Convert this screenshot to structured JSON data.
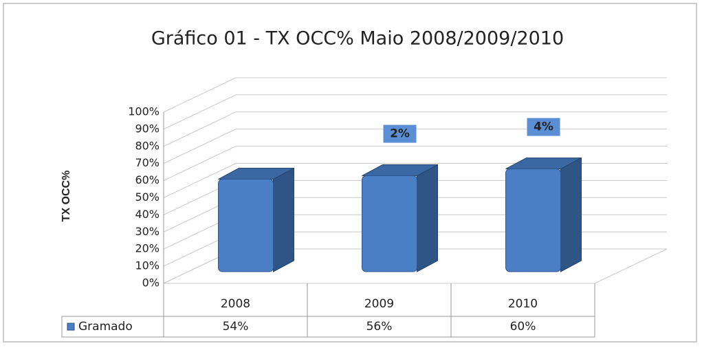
{
  "chart_data": {
    "type": "bar3d",
    "title": "Gráfico 01 - TX OCC%   Maio 2008/2009/2010",
    "ylabel": "TX OCC%",
    "categories": [
      "2008",
      "2009",
      "2010"
    ],
    "series": [
      {
        "name": "Gramado",
        "color": "#4a7fc6",
        "values": [
          54,
          56,
          60
        ],
        "value_labels": [
          "54%",
          "56%",
          "60%"
        ]
      }
    ],
    "ylim": [
      0,
      100
    ],
    "yticks": [
      {
        "value": 0,
        "label": "0%"
      },
      {
        "value": 10,
        "label": "10%"
      },
      {
        "value": 20,
        "label": "20%"
      },
      {
        "value": 30,
        "label": "30%"
      },
      {
        "value": 40,
        "label": "40%"
      },
      {
        "value": 50,
        "label": "50%"
      },
      {
        "value": 60,
        "label": "60%"
      },
      {
        "value": 70,
        "label": "70%"
      },
      {
        "value": 80,
        "label": "80%"
      },
      {
        "value": 90,
        "label": "90%"
      },
      {
        "value": 100,
        "label": "100%"
      }
    ],
    "grid": true,
    "annotations": [
      {
        "text": "2%",
        "x": "2009"
      },
      {
        "text": "4%",
        "x": "2010"
      }
    ]
  }
}
